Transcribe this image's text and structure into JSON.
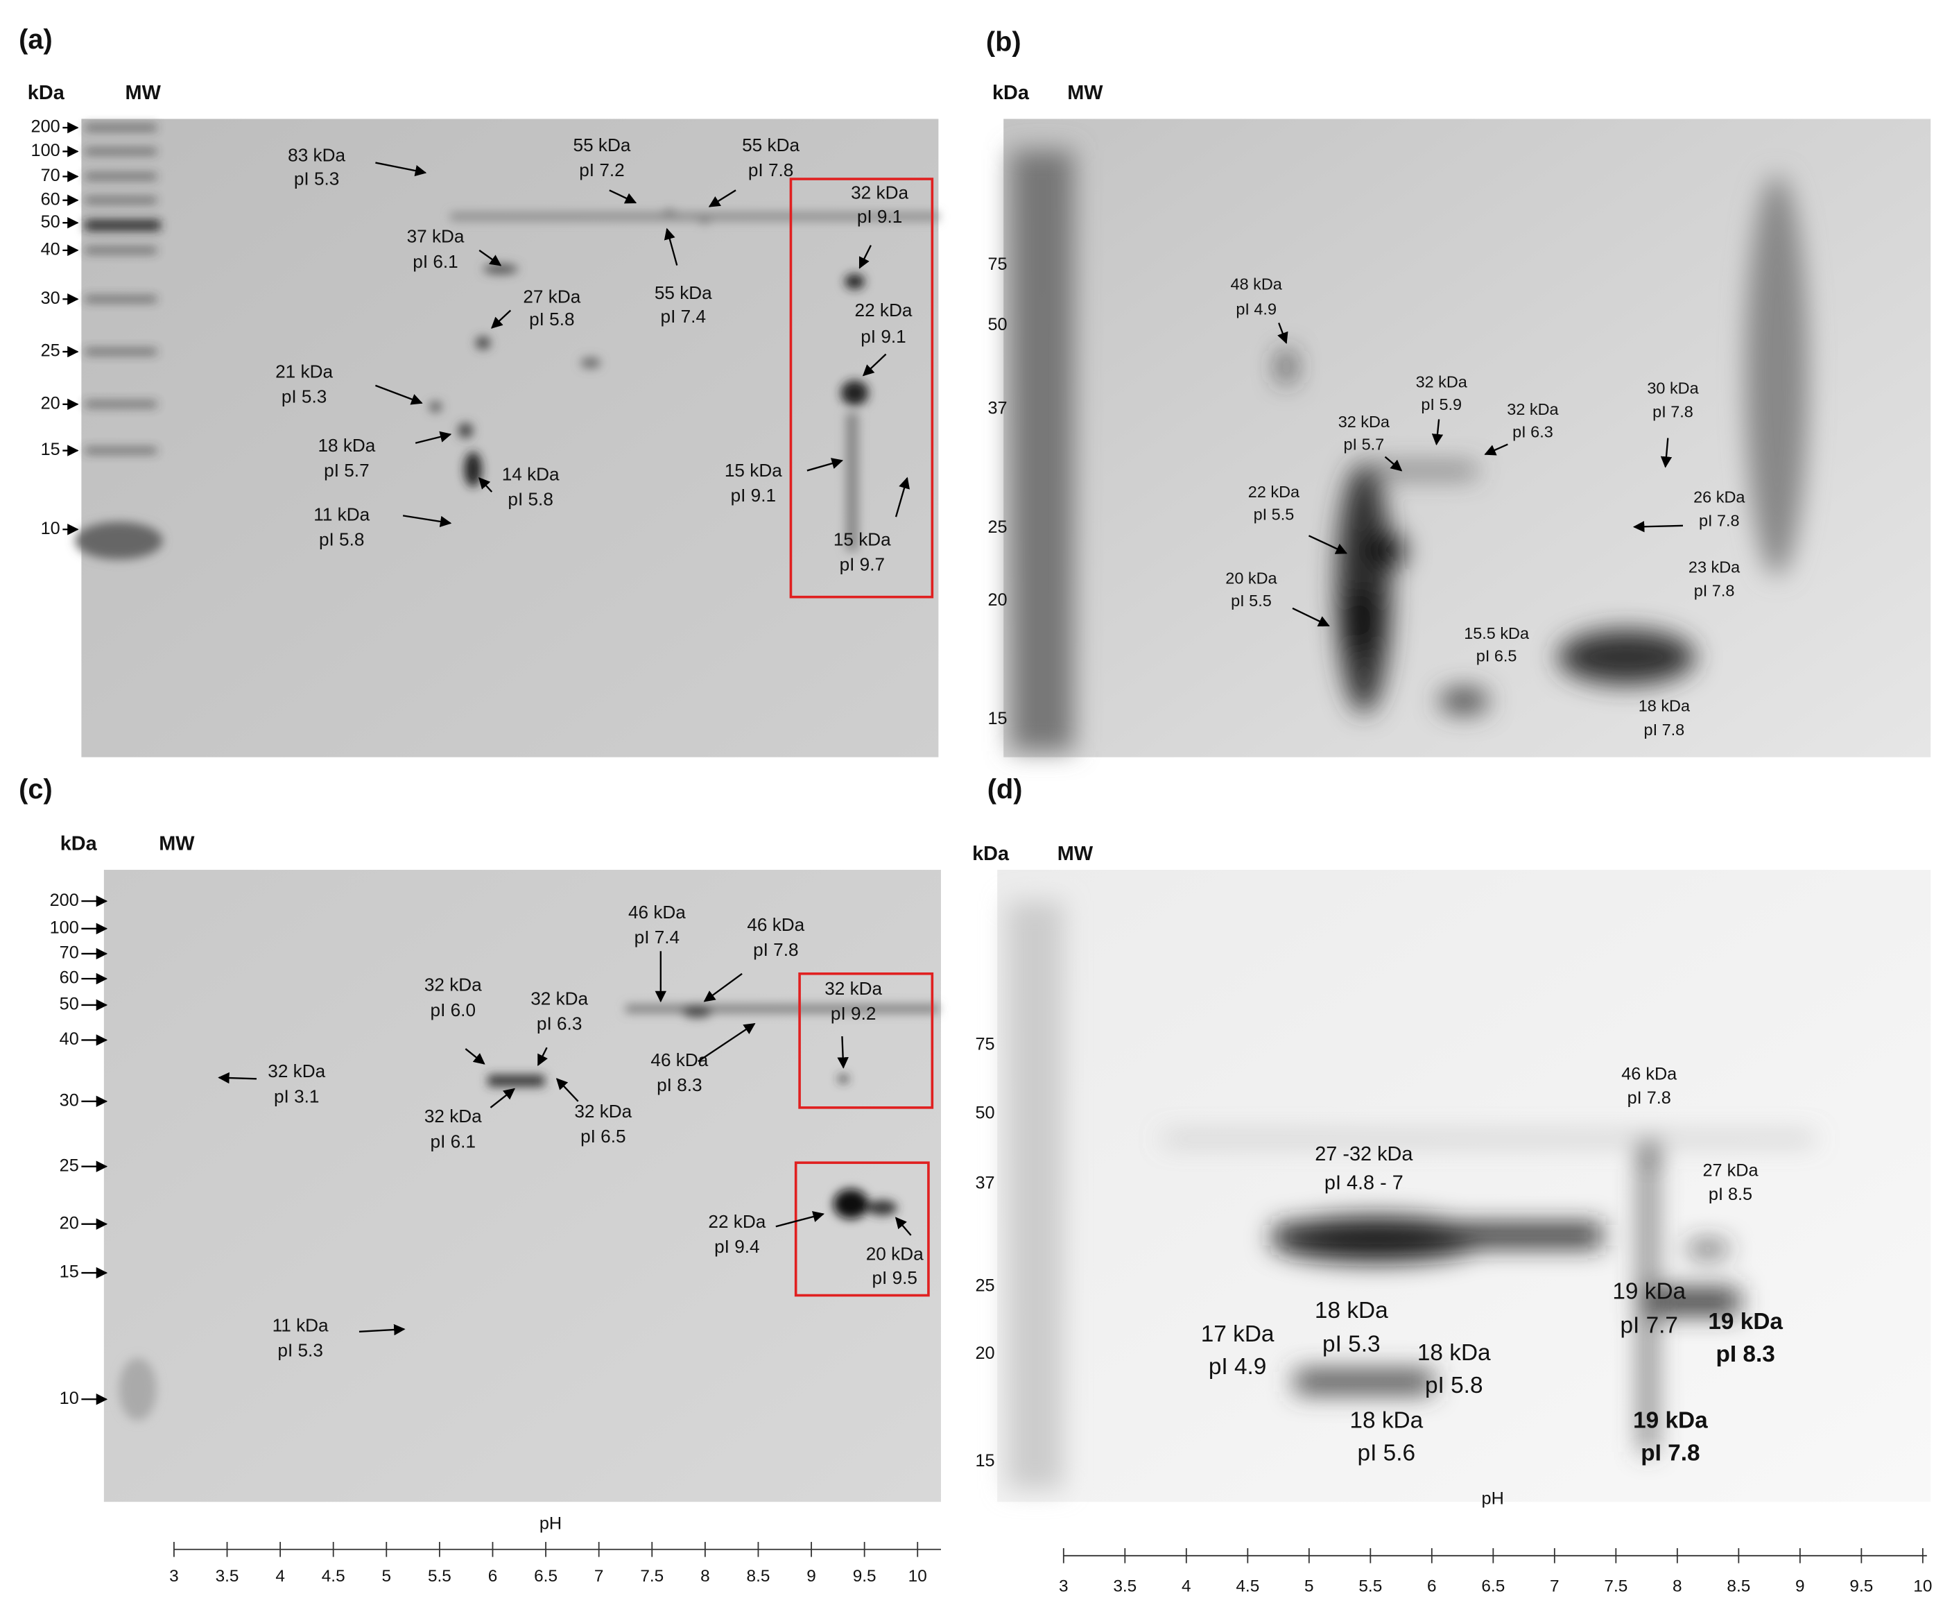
{
  "panels": [
    {
      "label": "(a)",
      "unit": "kDa",
      "lane": "MW",
      "markers": [
        200,
        100,
        70,
        60,
        50,
        40,
        30,
        25,
        20,
        15,
        10
      ],
      "spots": [
        [
          "83 kDa",
          "pI 5.3"
        ],
        [
          "55 kDa",
          "pI 7.2"
        ],
        [
          "55 kDa",
          "pI 7.8"
        ],
        [
          "37 kDa",
          "pI 6.1"
        ],
        [
          "27 kDa",
          "pI 5.8"
        ],
        [
          "55 kDa",
          "pI 7.4"
        ],
        [
          "21 kDa",
          "pI 5.3"
        ],
        [
          "18 kDa",
          "pI 5.7"
        ],
        [
          "14 kDa",
          "pI 5.8"
        ],
        [
          "11 kDa",
          "pI 5.8"
        ],
        [
          "32 kDa",
          "pI 9.1"
        ],
        [
          "22 kDa",
          "pI 9.1"
        ],
        [
          "15 kDa",
          "pI 9.1"
        ],
        [
          "15 kDa",
          "pI 9.7"
        ]
      ]
    },
    {
      "label": "(b)",
      "unit": "kDa",
      "lane": "MW",
      "markers": [
        75,
        50,
        37,
        25,
        20,
        15
      ],
      "spots": [
        [
          "48 kDa",
          "pI 4.9"
        ],
        [
          "32 kDa",
          "pI 5.9"
        ],
        [
          "32 kDa",
          "pI 5.7"
        ],
        [
          "32 kDa",
          "pI 6.3"
        ],
        [
          "30 kDa",
          "pI 7.8"
        ],
        [
          "22 kDa",
          "pI 5.5"
        ],
        [
          "26 kDa",
          "pI 7.8"
        ],
        [
          "20 kDa",
          "pI 5.5"
        ],
        [
          "23 kDa",
          "pI 7.8"
        ],
        [
          "15.5 kDa",
          "pI 6.5"
        ],
        [
          "18 kDa",
          "pI 7.8"
        ]
      ]
    },
    {
      "label": "(c)",
      "unit": "kDa",
      "lane": "MW",
      "markers": [
        200,
        100,
        70,
        60,
        50,
        40,
        30,
        25,
        20,
        15,
        10
      ],
      "spots": [
        [
          "32 kDa",
          "pI 3.1"
        ],
        [
          "32 kDa",
          "pI 6.0"
        ],
        [
          "32 kDa",
          "pI 6.3"
        ],
        [
          "46 kDa",
          "pI 7.4"
        ],
        [
          "46 kDa",
          "pI 7.8"
        ],
        [
          "32 kDa",
          "pI 9.2"
        ],
        [
          "32 kDa",
          "pI 6.1"
        ],
        [
          "32 kDa",
          "pI 6.5"
        ],
        [
          "46 kDa",
          "pI 8.3"
        ],
        [
          "22 kDa",
          "pI 9.4"
        ],
        [
          "20 kDa",
          "pI 9.5"
        ],
        [
          "11 kDa",
          "pI 5.3"
        ]
      ],
      "axis": {
        "title": "pH",
        "ticks": [
          3,
          3.5,
          4,
          4.5,
          5,
          5.5,
          6,
          6.5,
          7,
          7.5,
          8,
          8.5,
          9,
          9.5,
          10
        ]
      }
    },
    {
      "label": "(d)",
      "unit": "kDa",
      "lane": "MW",
      "markers": [
        75,
        50,
        37,
        25,
        20,
        15
      ],
      "spots": [
        [
          "46 kDa",
          "pI 7.8"
        ],
        [
          "27 -32 kDa",
          "pI 4.8 - 7"
        ],
        [
          "27 kDa",
          "pI 8.5"
        ],
        [
          "19 kDa",
          "pI 7.7"
        ],
        [
          "19 kDa",
          "pI 8.3"
        ],
        [
          "17 kDa",
          "pI 4.9"
        ],
        [
          "18 kDa",
          "pI 5.3"
        ],
        [
          "18 kDa",
          "pI 5.8"
        ],
        [
          "18 kDa",
          "pI 5.6"
        ],
        [
          "19 kDa",
          "pI 7.8"
        ]
      ],
      "axis": {
        "title": "pH",
        "ticks": [
          3,
          3.5,
          4,
          4.5,
          5,
          5.5,
          6,
          6.5,
          7,
          7.5,
          8,
          8.5,
          9,
          9.5,
          10
        ]
      }
    }
  ]
}
